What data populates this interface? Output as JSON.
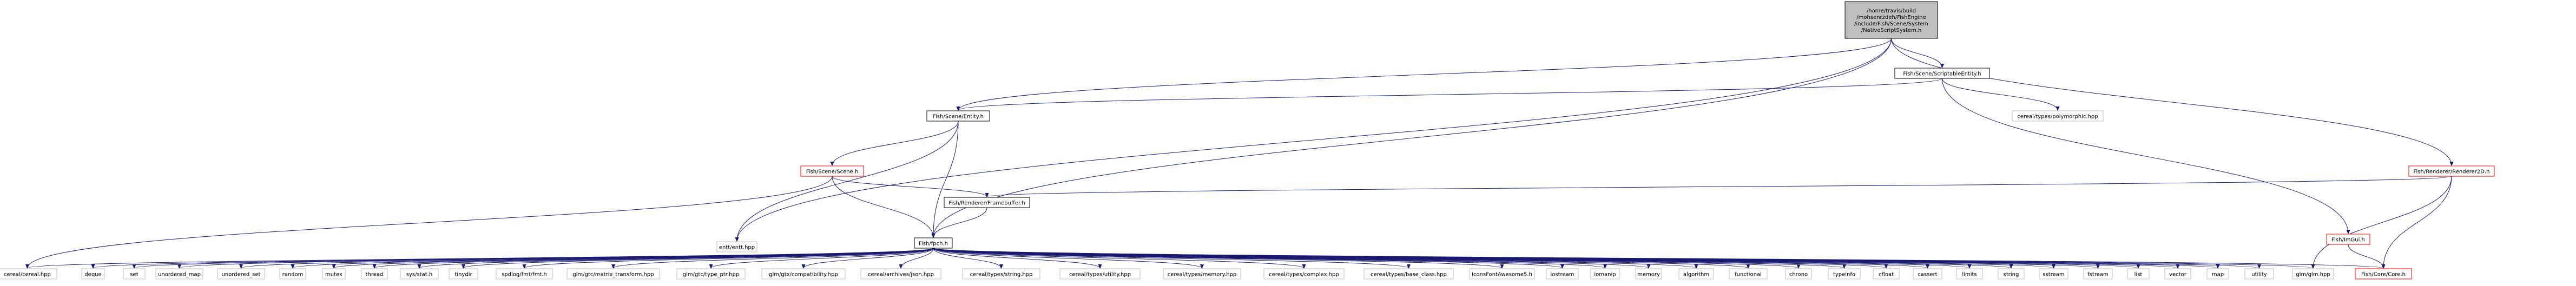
{
  "graph": {
    "colors": {
      "edge": "#191970",
      "root_fill": "#bfbfbf",
      "root_stroke": "#000000",
      "internal_stroke": "#000000",
      "missing_stroke": "#bfbfbf",
      "red_stroke": "#ff0000",
      "text": "#000000"
    },
    "nodes": [
      {
        "id": "root",
        "kind": "root",
        "lines": [
          "/home/travis/build",
          "/mohsenrzdeh/FishEngine",
          "/include/Fish/Scene/System",
          "/NativeScriptSystem.h"
        ]
      },
      {
        "id": "scriptable",
        "kind": "internal",
        "lines": [
          "Fish/Scene/ScriptableEntity.h"
        ]
      },
      {
        "id": "polymorphic",
        "kind": "missing",
        "lines": [
          "cereal/types/polymorphic.hpp"
        ]
      },
      {
        "id": "entity",
        "kind": "internal",
        "lines": [
          "Fish/Scene/Entity.h"
        ]
      },
      {
        "id": "renderer2d",
        "kind": "red",
        "lines": [
          "Fish/Renderer/Renderer2D.h"
        ]
      },
      {
        "id": "scene",
        "kind": "red",
        "lines": [
          "Fish/Scene/Scene.h"
        ]
      },
      {
        "id": "framebuffer",
        "kind": "internal",
        "lines": [
          "Fish/Renderer/Framebuffer.h"
        ]
      },
      {
        "id": "entt",
        "kind": "missing",
        "lines": [
          "entt/entt.hpp"
        ]
      },
      {
        "id": "imgui",
        "kind": "red",
        "lines": [
          "Fish/ImGui.h"
        ]
      },
      {
        "id": "fishpch",
        "kind": "internal",
        "lines": [
          "Fish/fpch.h"
        ]
      },
      {
        "id": "l_cereal",
        "kind": "missing",
        "lines": [
          "cereal/cereal.hpp"
        ]
      },
      {
        "id": "l_deque",
        "kind": "missing",
        "lines": [
          "deque"
        ]
      },
      {
        "id": "l_set",
        "kind": "missing",
        "lines": [
          "set"
        ]
      },
      {
        "id": "l_umap",
        "kind": "missing",
        "lines": [
          "unordered_map"
        ]
      },
      {
        "id": "l_uset",
        "kind": "missing",
        "lines": [
          "unordered_set"
        ]
      },
      {
        "id": "l_random",
        "kind": "missing",
        "lines": [
          "random"
        ]
      },
      {
        "id": "l_mutex",
        "kind": "missing",
        "lines": [
          "mutex"
        ]
      },
      {
        "id": "l_thread",
        "kind": "missing",
        "lines": [
          "thread"
        ]
      },
      {
        "id": "l_sysstat",
        "kind": "missing",
        "lines": [
          "sys/stat.h"
        ]
      },
      {
        "id": "l_tinydir",
        "kind": "missing",
        "lines": [
          "tinydir"
        ]
      },
      {
        "id": "l_spdlog",
        "kind": "missing",
        "lines": [
          "spdlog/fmt/fmt.h"
        ]
      },
      {
        "id": "l_glm_mt",
        "kind": "missing",
        "lines": [
          "glm/gtc/matrix_transform.hpp"
        ]
      },
      {
        "id": "l_glm_tp",
        "kind": "missing",
        "lines": [
          "glm/gtc/type_ptr.hpp"
        ]
      },
      {
        "id": "l_glm_comp",
        "kind": "missing",
        "lines": [
          "glm/gtx/compatibility.hpp"
        ]
      },
      {
        "id": "l_json",
        "kind": "missing",
        "lines": [
          "cereal/archives/json.hpp"
        ]
      },
      {
        "id": "l_ctstring",
        "kind": "missing",
        "lines": [
          "cereal/types/string.hpp"
        ]
      },
      {
        "id": "l_ctutility",
        "kind": "missing",
        "lines": [
          "cereal/types/utility.hpp"
        ]
      },
      {
        "id": "l_ctmemory",
        "kind": "missing",
        "lines": [
          "cereal/types/memory.hpp"
        ]
      },
      {
        "id": "l_ctcomplex",
        "kind": "missing",
        "lines": [
          "cereal/types/complex.hpp"
        ]
      },
      {
        "id": "l_ctbase",
        "kind": "missing",
        "lines": [
          "cereal/types/base_class.hpp"
        ]
      },
      {
        "id": "l_icons",
        "kind": "missing",
        "lines": [
          "IconsFontAwesome5.h"
        ]
      },
      {
        "id": "l_iostream",
        "kind": "missing",
        "lines": [
          "iostream"
        ]
      },
      {
        "id": "l_iomanip",
        "kind": "missing",
        "lines": [
          "iomanip"
        ]
      },
      {
        "id": "l_memory",
        "kind": "missing",
        "lines": [
          "memory"
        ]
      },
      {
        "id": "l_algorithm",
        "kind": "missing",
        "lines": [
          "algorithm"
        ]
      },
      {
        "id": "l_functional",
        "kind": "missing",
        "lines": [
          "functional"
        ]
      },
      {
        "id": "l_chrono",
        "kind": "missing",
        "lines": [
          "chrono"
        ]
      },
      {
        "id": "l_typeinfo",
        "kind": "missing",
        "lines": [
          "typeinfo"
        ]
      },
      {
        "id": "l_cfloat",
        "kind": "missing",
        "lines": [
          "cfloat"
        ]
      },
      {
        "id": "l_cassert",
        "kind": "missing",
        "lines": [
          "cassert"
        ]
      },
      {
        "id": "l_limits",
        "kind": "missing",
        "lines": [
          "limits"
        ]
      },
      {
        "id": "l_string",
        "kind": "missing",
        "lines": [
          "string"
        ]
      },
      {
        "id": "l_sstream",
        "kind": "missing",
        "lines": [
          "sstream"
        ]
      },
      {
        "id": "l_fstream",
        "kind": "missing",
        "lines": [
          "fstream"
        ]
      },
      {
        "id": "l_list",
        "kind": "missing",
        "lines": [
          "list"
        ]
      },
      {
        "id": "l_vector",
        "kind": "missing",
        "lines": [
          "vector"
        ]
      },
      {
        "id": "l_map",
        "kind": "missing",
        "lines": [
          "map"
        ]
      },
      {
        "id": "l_utility",
        "kind": "missing",
        "lines": [
          "utility"
        ]
      },
      {
        "id": "l_glm",
        "kind": "missing",
        "lines": [
          "glm/glm.hpp"
        ]
      },
      {
        "id": "l_core",
        "kind": "red",
        "lines": [
          "Fish/Core/Core.h"
        ]
      }
    ],
    "edges": [
      [
        "root",
        "scriptable"
      ],
      [
        "root",
        "entity"
      ],
      [
        "root",
        "renderer2d"
      ],
      [
        "root",
        "entt"
      ],
      [
        "root",
        "fishpch"
      ],
      [
        "scriptable",
        "polymorphic"
      ],
      [
        "scriptable",
        "entity"
      ],
      [
        "scriptable",
        "imgui"
      ],
      [
        "entity",
        "scene"
      ],
      [
        "entity",
        "entt"
      ],
      [
        "entity",
        "fishpch"
      ],
      [
        "scene",
        "framebuffer"
      ],
      [
        "scene",
        "fishpch"
      ],
      [
        "scene",
        "l_cereal"
      ],
      [
        "renderer2d",
        "framebuffer"
      ],
      [
        "renderer2d",
        "l_glm"
      ],
      [
        "renderer2d",
        "l_core"
      ],
      [
        "framebuffer",
        "fishpch"
      ],
      [
        "imgui",
        "l_core"
      ],
      [
        "fishpch",
        "l_cereal"
      ],
      [
        "fishpch",
        "l_deque"
      ],
      [
        "fishpch",
        "l_set"
      ],
      [
        "fishpch",
        "l_umap"
      ],
      [
        "fishpch",
        "l_uset"
      ],
      [
        "fishpch",
        "l_random"
      ],
      [
        "fishpch",
        "l_mutex"
      ],
      [
        "fishpch",
        "l_thread"
      ],
      [
        "fishpch",
        "l_sysstat"
      ],
      [
        "fishpch",
        "l_tinydir"
      ],
      [
        "fishpch",
        "l_spdlog"
      ],
      [
        "fishpch",
        "l_glm_mt"
      ],
      [
        "fishpch",
        "l_glm_tp"
      ],
      [
        "fishpch",
        "l_glm_comp"
      ],
      [
        "fishpch",
        "l_json"
      ],
      [
        "fishpch",
        "l_ctstring"
      ],
      [
        "fishpch",
        "l_ctutility"
      ],
      [
        "fishpch",
        "l_ctmemory"
      ],
      [
        "fishpch",
        "l_ctcomplex"
      ],
      [
        "fishpch",
        "l_ctbase"
      ],
      [
        "fishpch",
        "l_icons"
      ],
      [
        "fishpch",
        "l_iostream"
      ],
      [
        "fishpch",
        "l_iomanip"
      ],
      [
        "fishpch",
        "l_memory"
      ],
      [
        "fishpch",
        "l_algorithm"
      ],
      [
        "fishpch",
        "l_functional"
      ],
      [
        "fishpch",
        "l_chrono"
      ],
      [
        "fishpch",
        "l_typeinfo"
      ],
      [
        "fishpch",
        "l_cfloat"
      ],
      [
        "fishpch",
        "l_cassert"
      ],
      [
        "fishpch",
        "l_limits"
      ],
      [
        "fishpch",
        "l_string"
      ],
      [
        "fishpch",
        "l_sstream"
      ],
      [
        "fishpch",
        "l_fstream"
      ],
      [
        "fishpch",
        "l_list"
      ],
      [
        "fishpch",
        "l_vector"
      ],
      [
        "fishpch",
        "l_map"
      ],
      [
        "fishpch",
        "l_utility"
      ],
      [
        "fishpch",
        "l_glm"
      ],
      [
        "fishpch",
        "l_core"
      ]
    ]
  }
}
